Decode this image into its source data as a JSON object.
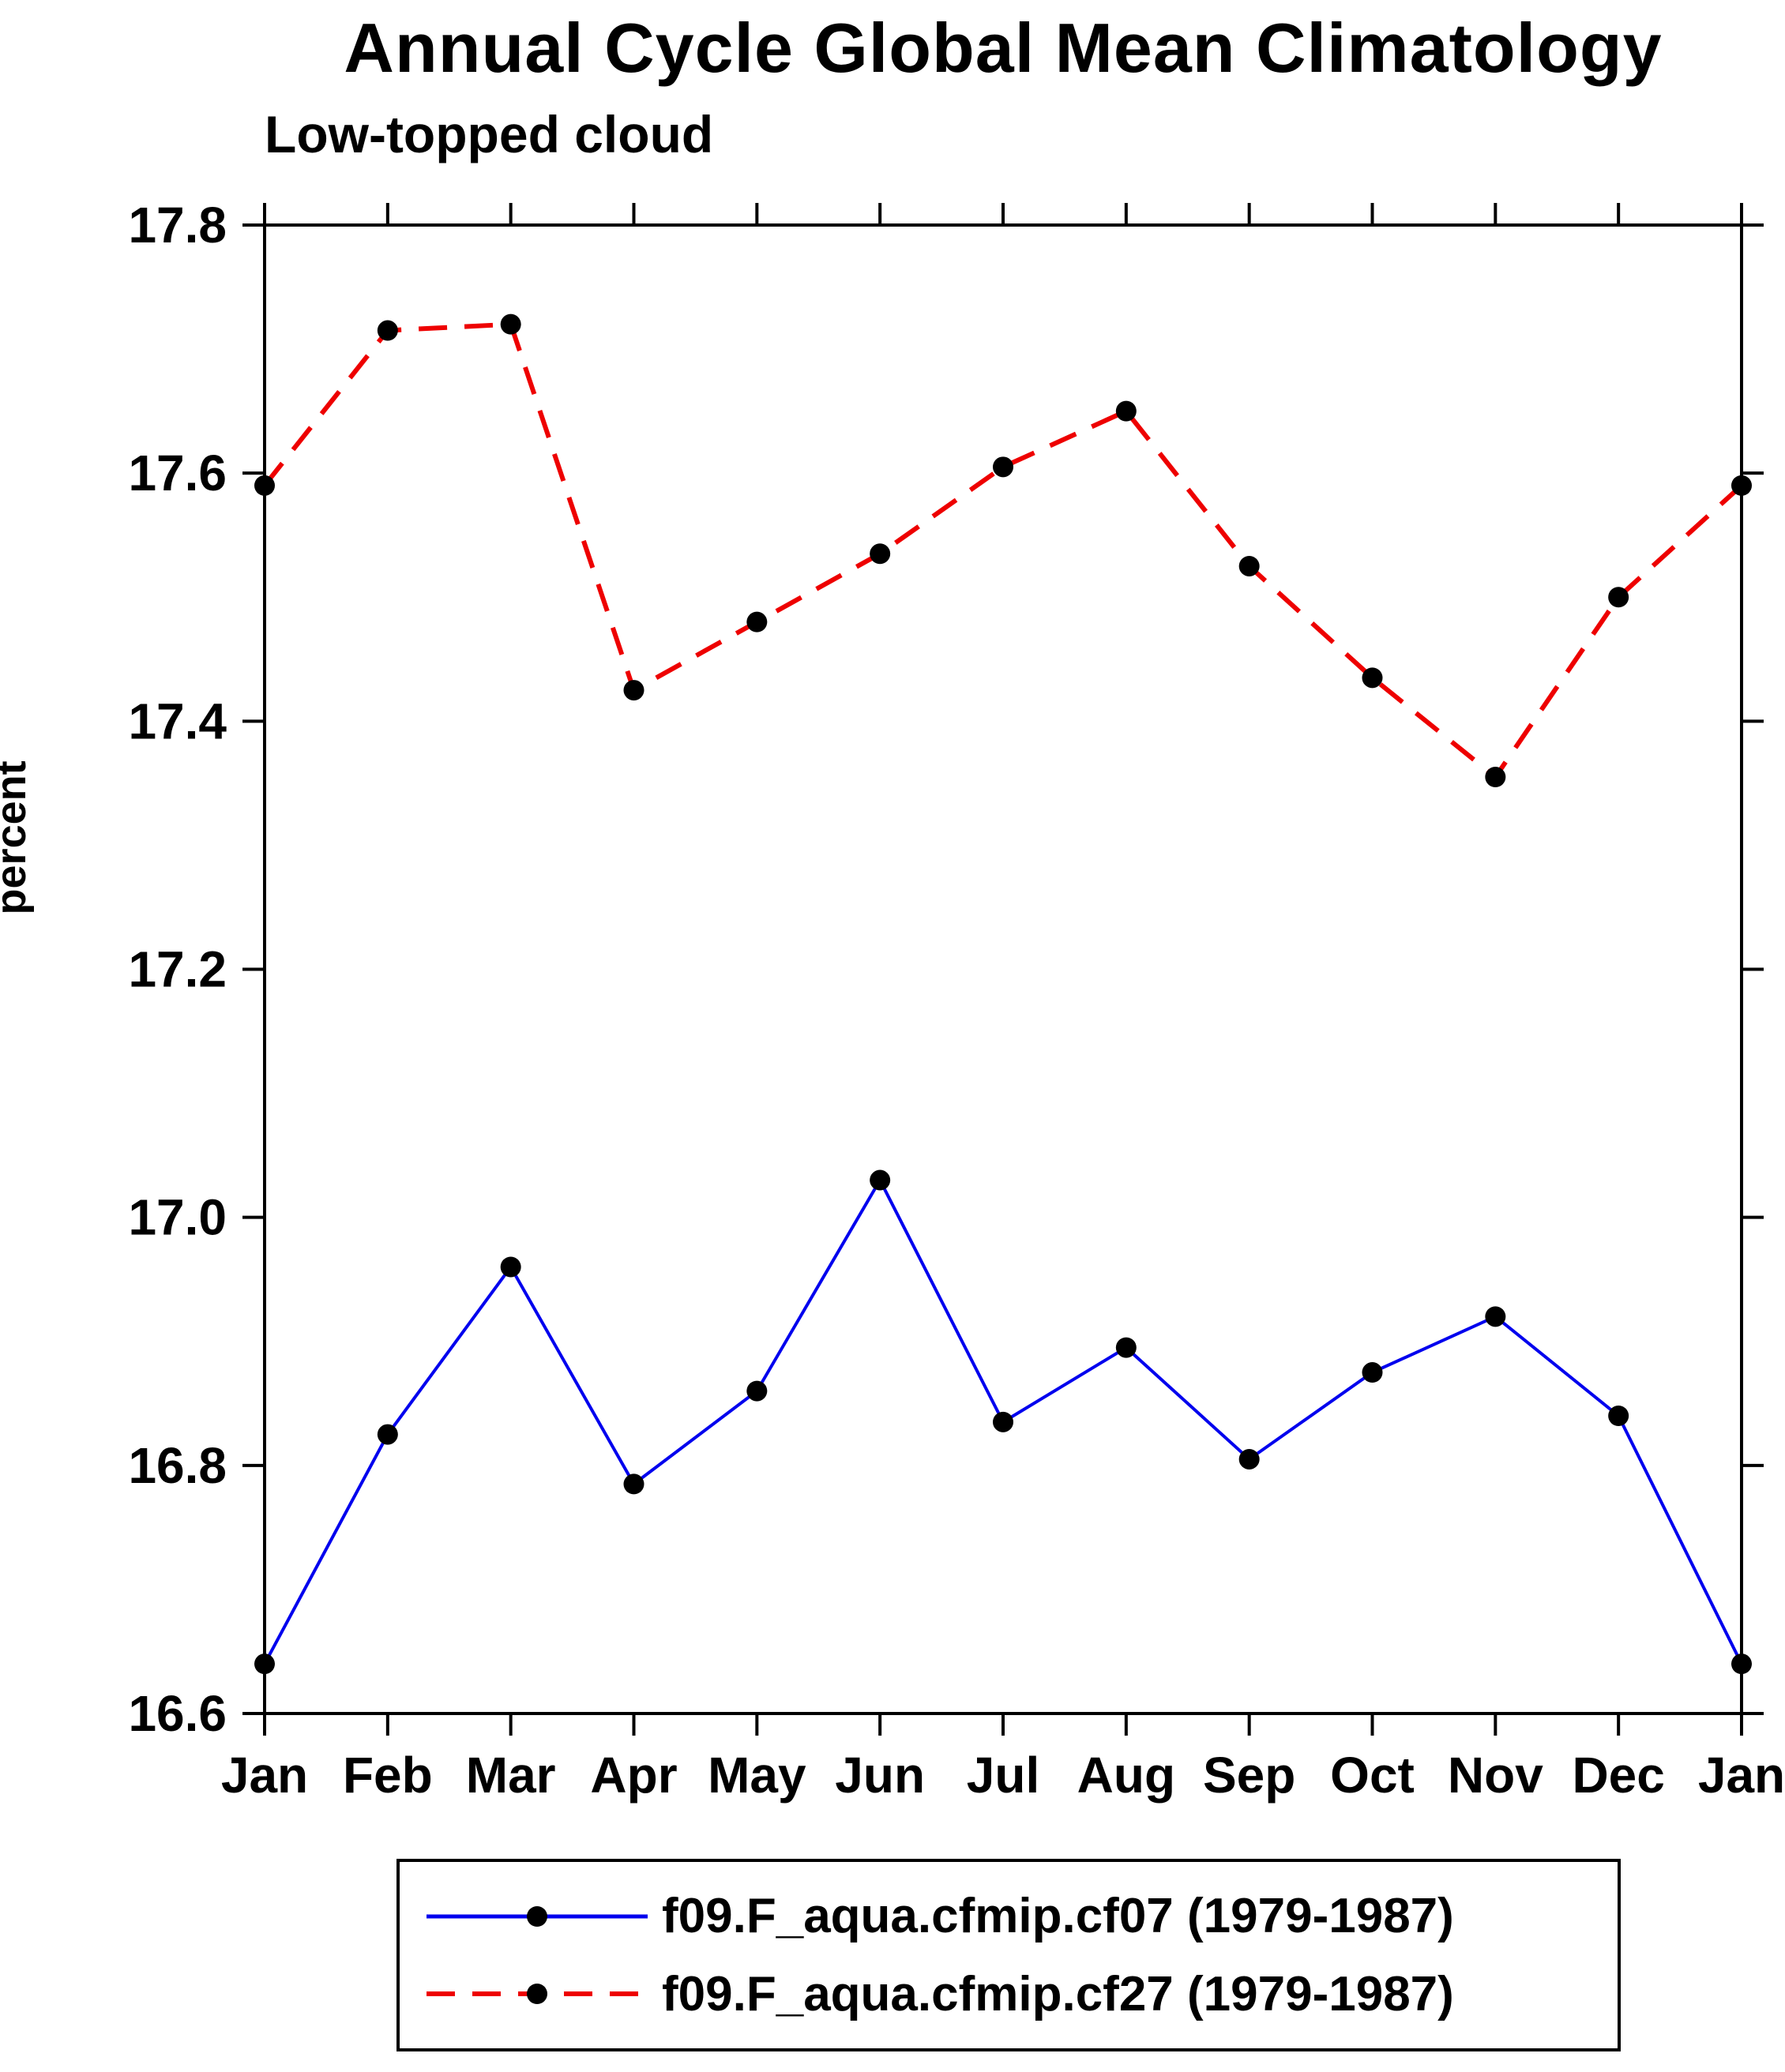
{
  "title": "Annual Cycle Global Mean Climatology",
  "subtitle": "Low-topped cloud",
  "chart_data": {
    "type": "line",
    "title": "Annual Cycle Global Mean Climatology",
    "subtitle": "Low-topped cloud",
    "xlabel": "",
    "ylabel": "percent",
    "ylim": [
      16.6,
      17.8
    ],
    "yticks": [
      16.6,
      16.8,
      17.0,
      17.2,
      17.4,
      17.6,
      17.8
    ],
    "grid": false,
    "legend_position": "bottom",
    "categories": [
      "Jan",
      "Feb",
      "Mar",
      "Apr",
      "May",
      "Jun",
      "Jul",
      "Aug",
      "Sep",
      "Oct",
      "Nov",
      "Dec",
      "Jan"
    ],
    "series": [
      {
        "name": "f09.F_aqua.cfmip.cf07 (1979-1987)",
        "color": "#0000ee",
        "line_style": "solid",
        "dash_pattern": "",
        "marker": "circle",
        "marker_color": "#000000",
        "values": [
          16.64,
          16.825,
          16.96,
          16.785,
          16.86,
          17.03,
          16.835,
          16.895,
          16.805,
          16.875,
          16.92,
          16.84,
          16.64
        ]
      },
      {
        "name": "f09.F_aqua.cfmip.cf27 (1979-1987)",
        "color": "#ee0000",
        "line_style": "dashed",
        "dash_pattern": "36 22",
        "marker": "circle",
        "marker_color": "#000000",
        "values": [
          17.59,
          17.715,
          17.72,
          17.425,
          17.48,
          17.535,
          17.605,
          17.65,
          17.525,
          17.435,
          17.355,
          17.5,
          17.59
        ]
      }
    ]
  }
}
